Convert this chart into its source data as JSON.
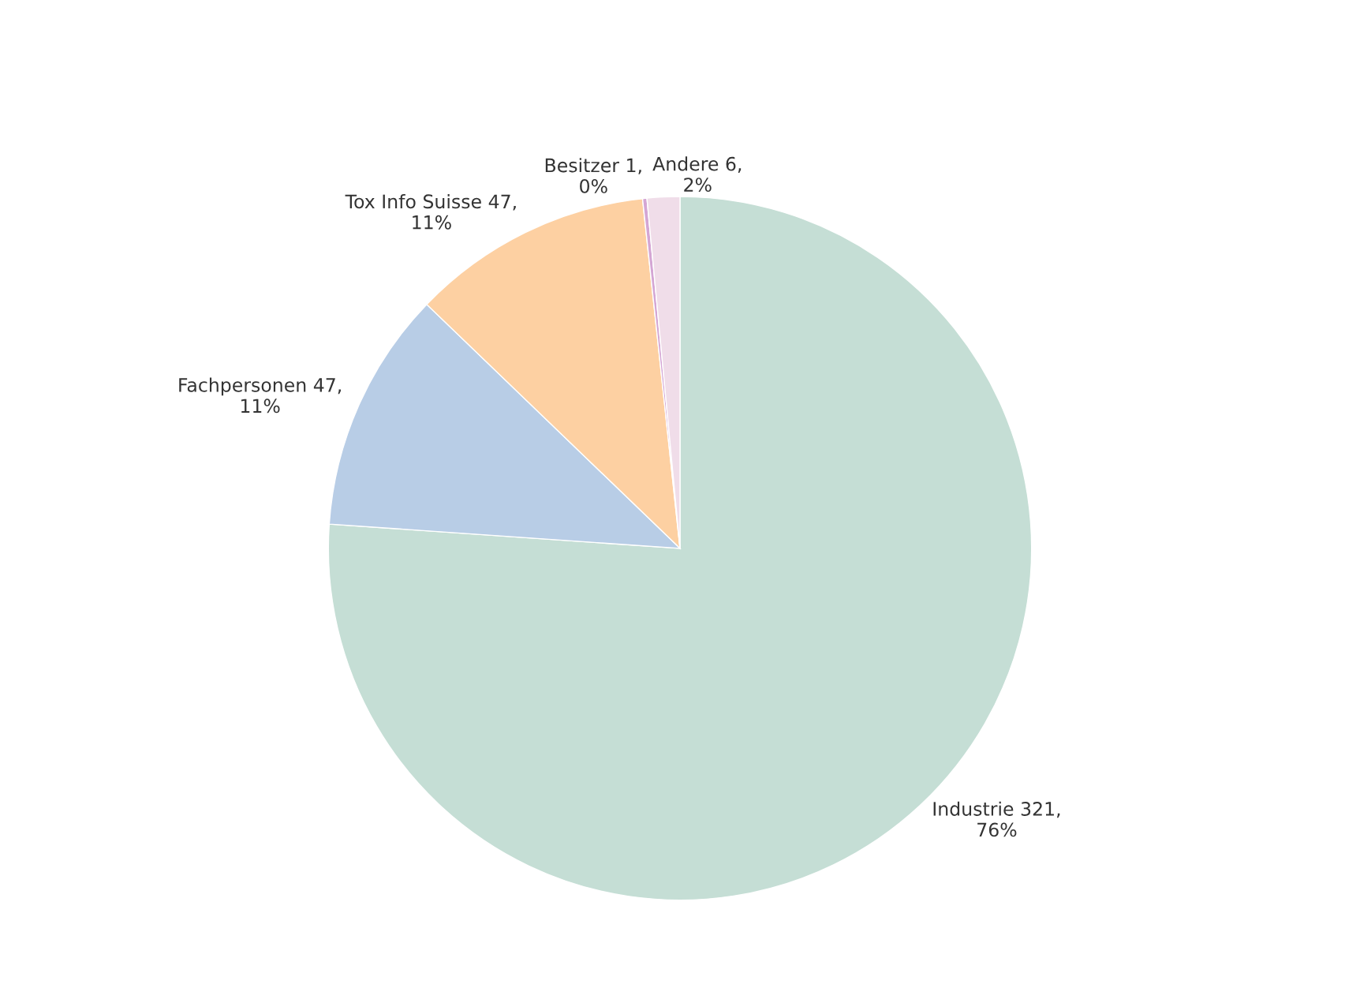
{
  "chart_data": {
    "type": "pie",
    "categories": [
      "Industrie",
      "Fachpersonen",
      "Tox Info Suisse",
      "Besitzer",
      "Andere"
    ],
    "values": [
      76.1,
      11.1,
      11.1,
      0.2,
      1.5
    ],
    "value_labels": [
      "321,\n76%",
      "47,\n11%",
      "47,\n11%",
      "1,\n0%",
      "6,\n2%"
    ],
    "colors": [
      "#c5ded5",
      "#b8cde6",
      "#fdd0a2",
      "#d4a6d4",
      "#f0dde9"
    ],
    "legend": false
  }
}
